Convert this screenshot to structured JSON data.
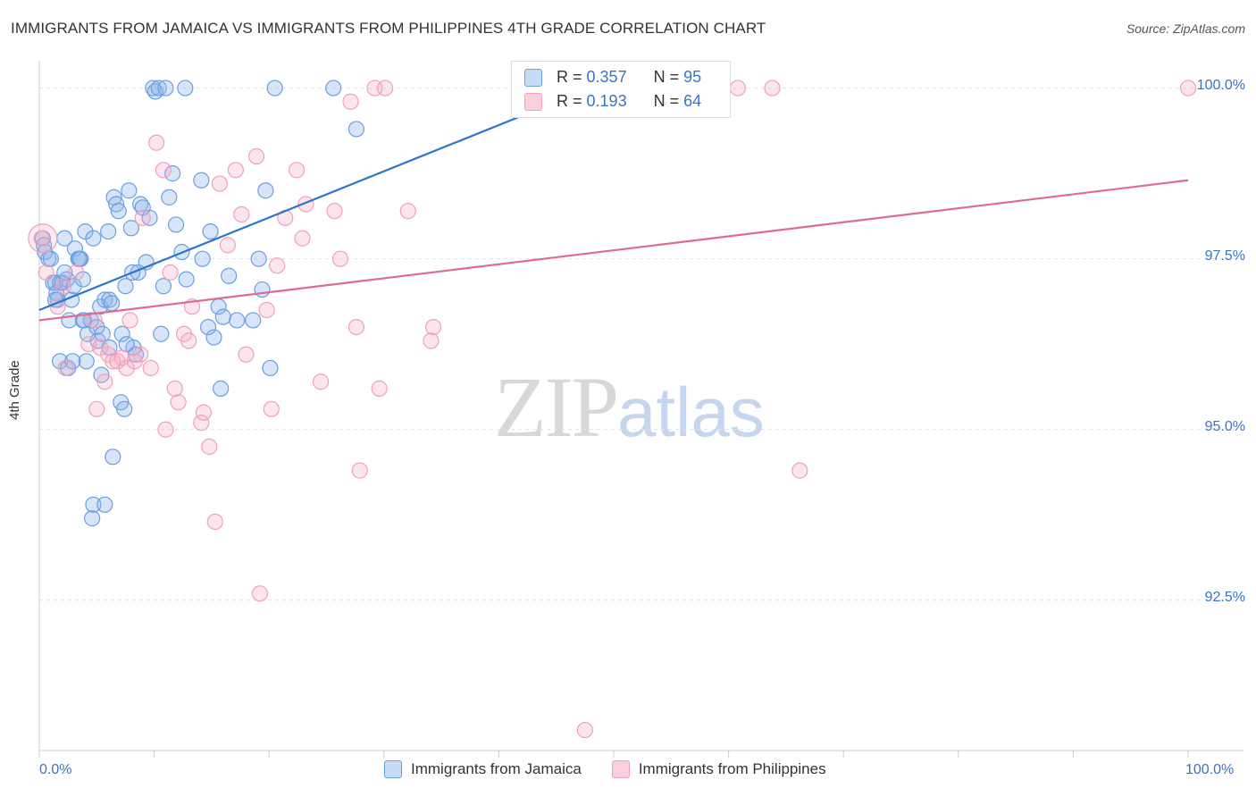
{
  "title": "IMMIGRANTS FROM JAMAICA VS IMMIGRANTS FROM PHILIPPINES 4TH GRADE CORRELATION CHART",
  "source": "Source: ZipAtlas.com",
  "watermark": {
    "zip": "ZIP",
    "atlas": "atlas"
  },
  "colors": {
    "jamaica": "#6c9ee0",
    "philippines": "#f0a0bb",
    "jamaica_line": "#2f74c9",
    "philippines_line": "#e06a94"
  },
  "stats": {
    "jamaica": {
      "r_label": "R = ",
      "r": "0.357",
      "n_label": "N = ",
      "n": "95"
    },
    "philippines": {
      "r_label": "R = ",
      "r": "0.193",
      "n_label": "N = ",
      "n": "64"
    }
  },
  "legend": {
    "jamaica": "Immigrants from Jamaica",
    "philippines": "Immigrants from Philippines"
  },
  "chart_data": {
    "type": "scatter",
    "title": "IMMIGRANTS FROM JAMAICA VS IMMIGRANTS FROM PHILIPPINES 4TH GRADE CORRELATION CHART",
    "xlabel": "",
    "ylabel": "4th Grade",
    "x_tick_labels": [
      "0.0%",
      "100.0%"
    ],
    "y_tick_labels": [
      "100.0%",
      "97.5%",
      "95.0%",
      "92.5%"
    ],
    "xlim": [
      0,
      100
    ],
    "ylim": [
      90.3,
      100.4
    ],
    "grid": true,
    "legend_position": "bottom",
    "series": [
      {
        "name": "Immigrants from Jamaica",
        "trend": {
          "x0": 0,
          "y0": 96.75,
          "x1": 48,
          "y1": 100.0
        },
        "points": [
          [
            0.3,
            97.8
          ],
          [
            0.4,
            97.7
          ],
          [
            0.5,
            97.6
          ],
          [
            0.8,
            97.5
          ],
          [
            1.0,
            97.5
          ],
          [
            1.2,
            97.15
          ],
          [
            1.4,
            97.15
          ],
          [
            1.5,
            97.0
          ],
          [
            1.6,
            96.9
          ],
          [
            1.8,
            97.15
          ],
          [
            2.0,
            97.15
          ],
          [
            2.2,
            97.8
          ],
          [
            2.4,
            97.2
          ],
          [
            2.6,
            96.6
          ],
          [
            2.8,
            96.9
          ],
          [
            3.0,
            97.1
          ],
          [
            3.1,
            97.65
          ],
          [
            3.4,
            97.5
          ],
          [
            3.6,
            97.5
          ],
          [
            3.8,
            97.2
          ],
          [
            3.9,
            96.6
          ],
          [
            4.0,
            97.9
          ],
          [
            4.2,
            96.4
          ],
          [
            4.5,
            96.6
          ],
          [
            4.7,
            97.8
          ],
          [
            5.0,
            96.5
          ],
          [
            5.1,
            96.3
          ],
          [
            5.3,
            96.8
          ],
          [
            5.5,
            96.4
          ],
          [
            5.7,
            96.9
          ],
          [
            6.0,
            97.9
          ],
          [
            6.1,
            96.9
          ],
          [
            6.3,
            96.85
          ],
          [
            6.5,
            98.4
          ],
          [
            6.7,
            98.3
          ],
          [
            6.9,
            98.2
          ],
          [
            7.2,
            96.4
          ],
          [
            7.5,
            97.1
          ],
          [
            7.8,
            98.5
          ],
          [
            8.0,
            97.95
          ],
          [
            8.2,
            96.2
          ],
          [
            8.4,
            96.1
          ],
          [
            8.6,
            97.3
          ],
          [
            8.8,
            98.3
          ],
          [
            9.0,
            98.25
          ],
          [
            9.3,
            97.45
          ],
          [
            9.6,
            98.1
          ],
          [
            9.9,
            100.0
          ],
          [
            10.1,
            99.95
          ],
          [
            10.4,
            100.0
          ],
          [
            10.6,
            96.4
          ],
          [
            10.8,
            97.1
          ],
          [
            11.0,
            100.0
          ],
          [
            11.3,
            98.4
          ],
          [
            11.6,
            98.75
          ],
          [
            11.9,
            98.0
          ],
          [
            12.4,
            97.6
          ],
          [
            12.8,
            97.2
          ],
          [
            12.7,
            100.0
          ],
          [
            14.1,
            98.65
          ],
          [
            14.2,
            97.5
          ],
          [
            14.7,
            96.5
          ],
          [
            14.9,
            97.9
          ],
          [
            15.2,
            96.35
          ],
          [
            15.6,
            96.8
          ],
          [
            15.8,
            95.6
          ],
          [
            16.0,
            96.65
          ],
          [
            16.5,
            97.25
          ],
          [
            17.2,
            96.6
          ],
          [
            18.6,
            96.6
          ],
          [
            19.1,
            97.5
          ],
          [
            19.4,
            97.05
          ],
          [
            19.7,
            98.5
          ],
          [
            20.1,
            95.9
          ],
          [
            20.5,
            100.0
          ],
          [
            25.6,
            100.0
          ],
          [
            27.6,
            99.4
          ],
          [
            4.1,
            96.0
          ],
          [
            1.8,
            96.0
          ],
          [
            2.5,
            95.9
          ],
          [
            5.4,
            95.8
          ],
          [
            7.1,
            95.4
          ],
          [
            7.4,
            95.3
          ],
          [
            2.9,
            96.0
          ],
          [
            3.8,
            96.6
          ],
          [
            6.4,
            94.6
          ],
          [
            4.6,
            93.7
          ],
          [
            4.7,
            93.9
          ],
          [
            5.7,
            93.9
          ],
          [
            2.2,
            97.3
          ],
          [
            6.1,
            96.2
          ],
          [
            7.6,
            96.25
          ],
          [
            8.1,
            97.3
          ],
          [
            1.4,
            96.9
          ],
          [
            3.5,
            97.5
          ]
        ]
      },
      {
        "name": "Immigrants from Philippines",
        "trend": {
          "x0": 0,
          "y0": 96.6,
          "x1": 100,
          "y1": 98.65
        },
        "points": [
          [
            0.2,
            97.8
          ],
          [
            0.6,
            97.3
          ],
          [
            1.6,
            96.8
          ],
          [
            2.1,
            97.1
          ],
          [
            2.3,
            95.9
          ],
          [
            3.2,
            97.3
          ],
          [
            4.3,
            96.25
          ],
          [
            4.8,
            96.6
          ],
          [
            5.0,
            95.3
          ],
          [
            5.3,
            96.2
          ],
          [
            5.7,
            95.7
          ],
          [
            6.0,
            96.1
          ],
          [
            6.4,
            96.0
          ],
          [
            6.8,
            96.0
          ],
          [
            7.2,
            96.05
          ],
          [
            7.6,
            95.9
          ],
          [
            7.9,
            96.6
          ],
          [
            8.3,
            96.0
          ],
          [
            8.8,
            96.1
          ],
          [
            9.0,
            98.1
          ],
          [
            9.7,
            95.9
          ],
          [
            10.2,
            99.2
          ],
          [
            10.8,
            98.8
          ],
          [
            11.0,
            95.0
          ],
          [
            11.4,
            97.3
          ],
          [
            11.8,
            95.6
          ],
          [
            12.1,
            95.4
          ],
          [
            12.6,
            96.4
          ],
          [
            13.0,
            96.3
          ],
          [
            13.3,
            96.8
          ],
          [
            14.1,
            95.1
          ],
          [
            14.3,
            95.25
          ],
          [
            14.8,
            94.75
          ],
          [
            15.3,
            93.65
          ],
          [
            15.7,
            98.6
          ],
          [
            16.4,
            97.7
          ],
          [
            17.1,
            98.8
          ],
          [
            17.6,
            98.15
          ],
          [
            18.0,
            96.1
          ],
          [
            18.9,
            99.0
          ],
          [
            19.2,
            92.6
          ],
          [
            19.8,
            96.75
          ],
          [
            20.2,
            95.3
          ],
          [
            20.7,
            97.4
          ],
          [
            21.4,
            98.1
          ],
          [
            22.4,
            98.8
          ],
          [
            22.9,
            97.8
          ],
          [
            23.2,
            98.3
          ],
          [
            24.5,
            95.7
          ],
          [
            25.7,
            98.2
          ],
          [
            26.2,
            97.5
          ],
          [
            27.1,
            99.8
          ],
          [
            27.6,
            96.5
          ],
          [
            27.9,
            94.4
          ],
          [
            29.2,
            100.0
          ],
          [
            30.1,
            100.0
          ],
          [
            29.6,
            95.6
          ],
          [
            32.1,
            98.2
          ],
          [
            34.1,
            96.3
          ],
          [
            34.3,
            96.5
          ],
          [
            47.5,
            90.6
          ],
          [
            60.8,
            100.0
          ],
          [
            63.8,
            100.0
          ],
          [
            66.2,
            94.4
          ],
          [
            100.0,
            100.0
          ]
        ]
      }
    ]
  }
}
